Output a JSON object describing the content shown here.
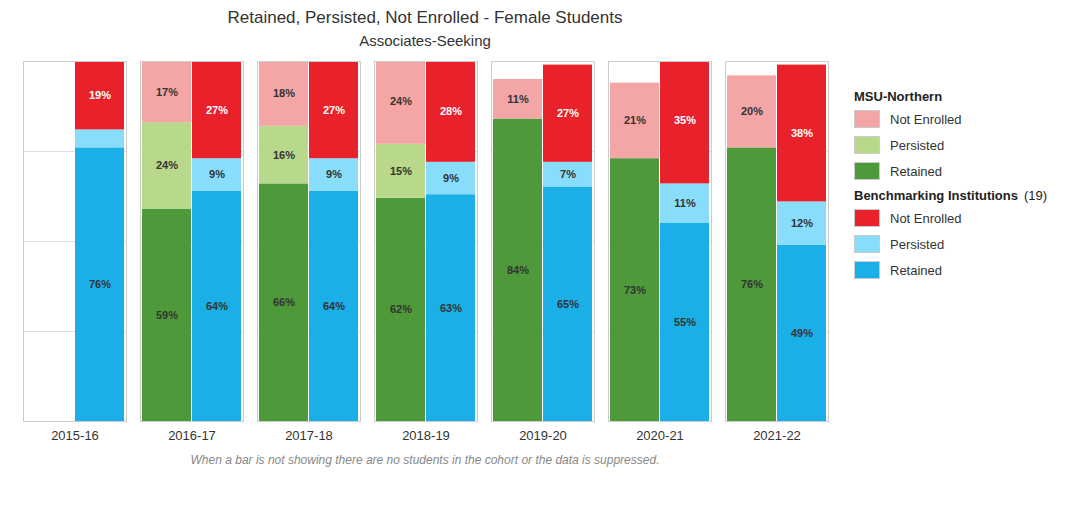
{
  "chart_data": {
    "type": "bar",
    "title": "Retained, Persisted, Not Enrolled - Female Students",
    "subtitle": "Associates-Seeking",
    "annotation": "When a bar is not showing there are no students in the cohort or the data is suppressed.",
    "categories": [
      "2015-16",
      "2016-17",
      "2017-18",
      "2018-19",
      "2019-20",
      "2020-21",
      "2021-22"
    ],
    "groups": [
      {
        "name": "MSU-Northern",
        "series": [
          {
            "name": "Retained",
            "color": "#4e9a3a",
            "values": [
              null,
              59,
              66,
              62,
              84,
              73,
              76
            ],
            "value_labels": [
              null,
              "59%",
              "66%",
              "62%",
              "84%",
              "73%",
              "76%"
            ]
          },
          {
            "name": "Persisted",
            "color": "#b8d88b",
            "values": [
              null,
              24,
              16,
              15,
              null,
              null,
              null
            ],
            "value_labels": [
              null,
              "24%",
              "16%",
              "15%",
              null,
              null,
              null
            ]
          },
          {
            "name": "Not Enrolled",
            "color": "#f4a5a5",
            "values": [
              null,
              17,
              18,
              24,
              11,
              21,
              20
            ],
            "value_labels": [
              null,
              "17%",
              "18%",
              "24%",
              "11%",
              "21%",
              "20%"
            ]
          }
        ]
      },
      {
        "name": "Benchmarking Institutions",
        "count_label": "(19)",
        "series": [
          {
            "name": "Retained",
            "color": "#1aafe6",
            "values": [
              76,
              64,
              64,
              63,
              65,
              55,
              49
            ],
            "value_labels": [
              "76%",
              "64%",
              "64%",
              "63%",
              "65%",
              "55%",
              "49%"
            ]
          },
          {
            "name": "Persisted",
            "color": "#87ddfa",
            "values": [
              5,
              9,
              9,
              9,
              7,
              11,
              12
            ],
            "value_labels": [
              null,
              "9%",
              "9%",
              "9%",
              "7%",
              "11%",
              "12%"
            ]
          },
          {
            "name": "Not Enrolled",
            "color": "#e8212a",
            "values": [
              19,
              27,
              27,
              28,
              27,
              35,
              38
            ],
            "value_labels": [
              "19%",
              "27%",
              "27%",
              "28%",
              "27%",
              "35%",
              "38%"
            ]
          }
        ]
      }
    ],
    "stacked": true,
    "data_labels": true,
    "ylim": [
      0,
      100
    ],
    "yticks": [
      25,
      50,
      75
    ],
    "grid": true,
    "tick_labels": "x",
    "legend": "right"
  }
}
